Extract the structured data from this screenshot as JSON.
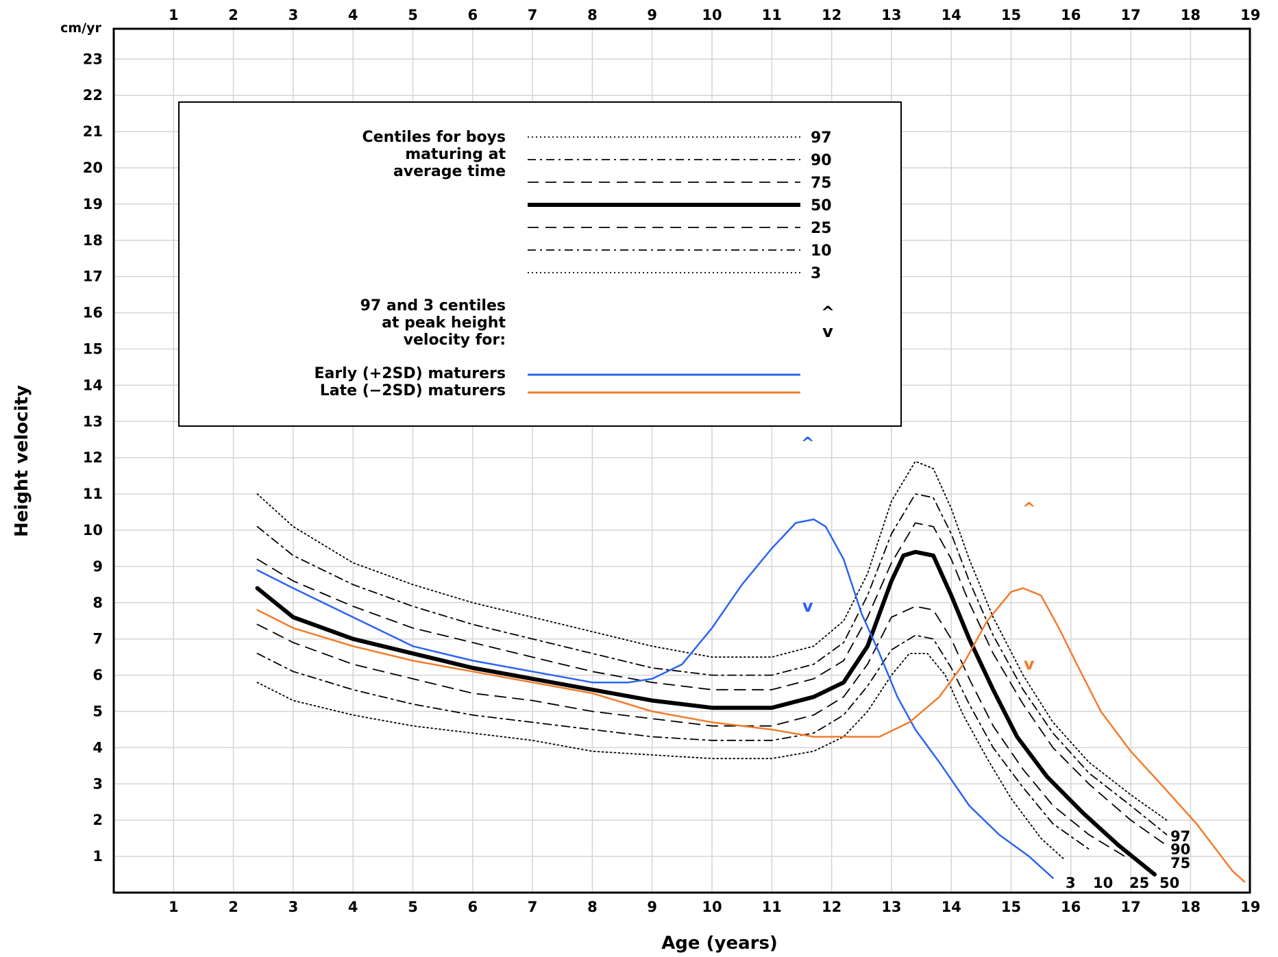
{
  "chart_data": {
    "type": "line",
    "xlabel": "Age (years)",
    "ylabel": "Height velocity",
    "y_unit": "cm/yr",
    "xlim": [
      0,
      19
    ],
    "ylim": [
      0,
      24
    ],
    "x_ticks": [
      1,
      2,
      3,
      4,
      5,
      6,
      7,
      8,
      9,
      10,
      11,
      12,
      13,
      14,
      15,
      16,
      17,
      18,
      19
    ],
    "y_ticks": [
      1,
      2,
      3,
      4,
      5,
      6,
      7,
      8,
      9,
      10,
      11,
      12,
      13,
      14,
      15,
      16,
      17,
      18,
      19,
      20,
      21,
      22,
      23
    ],
    "grid": true,
    "legend": {
      "placement": "top-left",
      "title_lines": [
        "Centiles for boys",
        "maturing at",
        "average time"
      ],
      "centile_labels": [
        "97",
        "90",
        "75",
        "50",
        "25",
        "10",
        "3"
      ],
      "peak_lines": [
        "97 and 3 centiles",
        "at peak height",
        "velocity for:"
      ],
      "peak_symbols": [
        "^",
        "v"
      ],
      "maturer_labels": [
        "Early (+2SD) maturers",
        "Late (−2SD) maturers"
      ]
    },
    "colors": {
      "early": "#2b63f0",
      "late": "#f27b2a",
      "centile": "#000000"
    },
    "series": [
      {
        "name": "97",
        "style": "dotted",
        "points": [
          [
            2.4,
            11.0
          ],
          [
            3,
            10.1
          ],
          [
            4,
            9.1
          ],
          [
            5,
            8.5
          ],
          [
            6,
            8.0
          ],
          [
            7,
            7.6
          ],
          [
            8,
            7.2
          ],
          [
            9,
            6.8
          ],
          [
            10,
            6.5
          ],
          [
            11,
            6.5
          ],
          [
            11.7,
            6.8
          ],
          [
            12.2,
            7.5
          ],
          [
            12.6,
            8.8
          ],
          [
            13.0,
            10.8
          ],
          [
            13.4,
            11.9
          ],
          [
            13.7,
            11.7
          ],
          [
            14.0,
            10.6
          ],
          [
            14.3,
            9.2
          ],
          [
            14.7,
            7.6
          ],
          [
            15.2,
            6.0
          ],
          [
            15.7,
            4.7
          ],
          [
            16.3,
            3.6
          ],
          [
            17.0,
            2.7
          ],
          [
            17.6,
            2.0
          ]
        ]
      },
      {
        "name": "90",
        "style": "dashdot",
        "points": [
          [
            2.4,
            10.1
          ],
          [
            3,
            9.3
          ],
          [
            4,
            8.5
          ],
          [
            5,
            7.9
          ],
          [
            6,
            7.4
          ],
          [
            7,
            7.0
          ],
          [
            8,
            6.6
          ],
          [
            9,
            6.2
          ],
          [
            10,
            6.0
          ],
          [
            11,
            6.0
          ],
          [
            11.7,
            6.3
          ],
          [
            12.2,
            6.9
          ],
          [
            12.6,
            8.2
          ],
          [
            13.0,
            9.9
          ],
          [
            13.4,
            11.0
          ],
          [
            13.7,
            10.9
          ],
          [
            14.0,
            9.9
          ],
          [
            14.3,
            8.6
          ],
          [
            14.7,
            7.1
          ],
          [
            15.2,
            5.6
          ],
          [
            15.7,
            4.4
          ],
          [
            16.3,
            3.3
          ],
          [
            17.0,
            2.4
          ],
          [
            17.6,
            1.6
          ]
        ]
      },
      {
        "name": "75",
        "style": "dashed",
        "points": [
          [
            2.4,
            9.2
          ],
          [
            3,
            8.6
          ],
          [
            4,
            7.9
          ],
          [
            5,
            7.3
          ],
          [
            6,
            6.9
          ],
          [
            7,
            6.5
          ],
          [
            8,
            6.1
          ],
          [
            9,
            5.8
          ],
          [
            10,
            5.6
          ],
          [
            11,
            5.6
          ],
          [
            11.7,
            5.9
          ],
          [
            12.2,
            6.4
          ],
          [
            12.6,
            7.6
          ],
          [
            13.0,
            9.1
          ],
          [
            13.4,
            10.2
          ],
          [
            13.7,
            10.1
          ],
          [
            14.0,
            9.2
          ],
          [
            14.3,
            8.0
          ],
          [
            14.7,
            6.6
          ],
          [
            15.2,
            5.2
          ],
          [
            15.7,
            4.0
          ],
          [
            16.3,
            3.0
          ],
          [
            17.0,
            2.0
          ],
          [
            17.6,
            1.3
          ]
        ]
      },
      {
        "name": "50",
        "style": "solid",
        "points": [
          [
            2.4,
            8.4
          ],
          [
            3,
            7.6
          ],
          [
            4,
            7.0
          ],
          [
            5,
            6.6
          ],
          [
            6,
            6.2
          ],
          [
            7,
            5.9
          ],
          [
            8,
            5.6
          ],
          [
            9,
            5.3
          ],
          [
            10,
            5.1
          ],
          [
            11,
            5.1
          ],
          [
            11.7,
            5.4
          ],
          [
            12.2,
            5.8
          ],
          [
            12.6,
            6.8
          ],
          [
            13.0,
            8.6
          ],
          [
            13.2,
            9.3
          ],
          [
            13.4,
            9.4
          ],
          [
            13.7,
            9.3
          ],
          [
            14.0,
            8.2
          ],
          [
            14.3,
            7.0
          ],
          [
            14.7,
            5.6
          ],
          [
            15.1,
            4.3
          ],
          [
            15.6,
            3.2
          ],
          [
            16.2,
            2.2
          ],
          [
            16.8,
            1.3
          ],
          [
            17.4,
            0.5
          ]
        ]
      },
      {
        "name": "25",
        "style": "dashed",
        "points": [
          [
            2.4,
            7.4
          ],
          [
            3,
            6.9
          ],
          [
            4,
            6.3
          ],
          [
            5,
            5.9
          ],
          [
            6,
            5.5
          ],
          [
            7,
            5.3
          ],
          [
            8,
            5.0
          ],
          [
            9,
            4.8
          ],
          [
            10,
            4.6
          ],
          [
            11,
            4.6
          ],
          [
            11.7,
            4.9
          ],
          [
            12.2,
            5.4
          ],
          [
            12.6,
            6.3
          ],
          [
            13.0,
            7.6
          ],
          [
            13.4,
            7.9
          ],
          [
            13.7,
            7.8
          ],
          [
            14.0,
            7.0
          ],
          [
            14.3,
            5.9
          ],
          [
            14.7,
            4.6
          ],
          [
            15.2,
            3.4
          ],
          [
            15.7,
            2.4
          ],
          [
            16.3,
            1.6
          ],
          [
            16.9,
            1.0
          ]
        ]
      },
      {
        "name": "10",
        "style": "dashdot",
        "points": [
          [
            2.4,
            6.6
          ],
          [
            3,
            6.1
          ],
          [
            4,
            5.6
          ],
          [
            5,
            5.2
          ],
          [
            6,
            4.9
          ],
          [
            7,
            4.7
          ],
          [
            8,
            4.5
          ],
          [
            9,
            4.3
          ],
          [
            10,
            4.2
          ],
          [
            11,
            4.2
          ],
          [
            11.7,
            4.4
          ],
          [
            12.2,
            4.9
          ],
          [
            12.6,
            5.7
          ],
          [
            13.0,
            6.7
          ],
          [
            13.4,
            7.1
          ],
          [
            13.7,
            7.0
          ],
          [
            14.0,
            6.2
          ],
          [
            14.3,
            5.2
          ],
          [
            14.7,
            4.0
          ],
          [
            15.2,
            2.9
          ],
          [
            15.7,
            1.9
          ],
          [
            16.3,
            1.2
          ]
        ]
      },
      {
        "name": "3",
        "style": "dotted",
        "points": [
          [
            2.4,
            5.8
          ],
          [
            3,
            5.3
          ],
          [
            4,
            4.9
          ],
          [
            5,
            4.6
          ],
          [
            6,
            4.4
          ],
          [
            7,
            4.2
          ],
          [
            8,
            3.9
          ],
          [
            9,
            3.8
          ],
          [
            10,
            3.7
          ],
          [
            11,
            3.7
          ],
          [
            11.7,
            3.9
          ],
          [
            12.2,
            4.3
          ],
          [
            12.6,
            5.0
          ],
          [
            13.0,
            6.0
          ],
          [
            13.3,
            6.6
          ],
          [
            13.6,
            6.6
          ],
          [
            13.9,
            6.0
          ],
          [
            14.2,
            4.9
          ],
          [
            14.6,
            3.7
          ],
          [
            15.0,
            2.6
          ],
          [
            15.5,
            1.5
          ],
          [
            15.9,
            0.9
          ]
        ]
      },
      {
        "name": "Early (+2SD) maturers",
        "style": "early",
        "points": [
          [
            2.4,
            8.9
          ],
          [
            3,
            8.4
          ],
          [
            4,
            7.6
          ],
          [
            5,
            6.8
          ],
          [
            6,
            6.4
          ],
          [
            7,
            6.1
          ],
          [
            8,
            5.8
          ],
          [
            8.6,
            5.8
          ],
          [
            9,
            5.9
          ],
          [
            9.5,
            6.3
          ],
          [
            10,
            7.3
          ],
          [
            10.5,
            8.5
          ],
          [
            11,
            9.5
          ],
          [
            11.4,
            10.2
          ],
          [
            11.7,
            10.3
          ],
          [
            11.9,
            10.1
          ],
          [
            12.2,
            9.2
          ],
          [
            12.5,
            7.7
          ],
          [
            12.8,
            6.6
          ],
          [
            13.1,
            5.4
          ],
          [
            13.4,
            4.5
          ],
          [
            13.8,
            3.6
          ],
          [
            14.3,
            2.4
          ],
          [
            14.8,
            1.6
          ],
          [
            15.3,
            1.0
          ],
          [
            15.7,
            0.4
          ]
        ]
      },
      {
        "name": "Late (−2SD) maturers",
        "style": "late",
        "points": [
          [
            2.4,
            7.8
          ],
          [
            3,
            7.3
          ],
          [
            4,
            6.8
          ],
          [
            5,
            6.4
          ],
          [
            6,
            6.1
          ],
          [
            7,
            5.8
          ],
          [
            8,
            5.5
          ],
          [
            9,
            5.0
          ],
          [
            10,
            4.7
          ],
          [
            11,
            4.5
          ],
          [
            11.7,
            4.3
          ],
          [
            12.2,
            4.3
          ],
          [
            12.8,
            4.3
          ],
          [
            13.3,
            4.7
          ],
          [
            13.8,
            5.4
          ],
          [
            14.2,
            6.3
          ],
          [
            14.6,
            7.5
          ],
          [
            15.0,
            8.3
          ],
          [
            15.2,
            8.4
          ],
          [
            15.5,
            8.2
          ],
          [
            15.8,
            7.3
          ],
          [
            16.1,
            6.3
          ],
          [
            16.5,
            5.0
          ],
          [
            17.0,
            3.9
          ],
          [
            17.5,
            3.0
          ],
          [
            18.1,
            1.9
          ],
          [
            18.7,
            0.6
          ],
          [
            18.9,
            0.3
          ]
        ]
      }
    ],
    "peak_markers": [
      {
        "series": "Early (+2SD) maturers",
        "symbol": "^",
        "x": 11.6,
        "y": 12.4
      },
      {
        "series": "Early (+2SD) maturers",
        "symbol": "v",
        "x": 11.6,
        "y": 7.9
      },
      {
        "series": "Late (−2SD) maturers",
        "symbol": "^",
        "x": 15.3,
        "y": 10.6
      },
      {
        "series": "Late (−2SD) maturers",
        "symbol": "v",
        "x": 15.3,
        "y": 6.3
      }
    ],
    "end_labels": {
      "right_stack": [
        "97",
        "90",
        "75"
      ],
      "bottom_row": [
        "3",
        "10",
        "25",
        "50"
      ]
    }
  }
}
